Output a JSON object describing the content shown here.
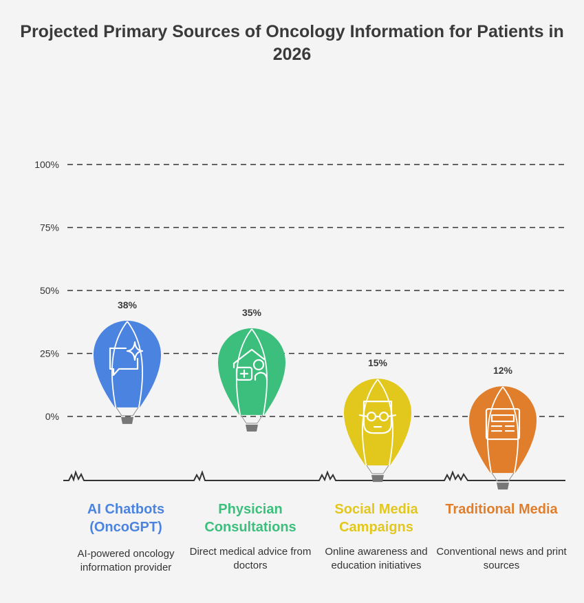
{
  "title": "Projected Primary Sources of Oncology Information for Patients in 2026",
  "chart_data": {
    "type": "bar",
    "style": "hot-air-balloons",
    "categories": [
      "AI Chatbots (OncoGPT)",
      "Physician Consultations",
      "Social Media Campaigns",
      "Traditional Media"
    ],
    "descriptions": [
      "AI-powered oncology information provider",
      "Direct medical advice from doctors",
      "Online awareness and education initiatives",
      "Conventional news and print sources"
    ],
    "values": [
      38,
      35,
      15,
      12
    ],
    "value_labels": [
      "38%",
      "35%",
      "15%",
      "12%"
    ],
    "colors": [
      "#4b84e0",
      "#3cbf7c",
      "#e2c71d",
      "#e07e2b"
    ],
    "icons": [
      "chat-sparkle-icon",
      "medical-house-icon",
      "nerd-face-icon",
      "newspaper-icon"
    ],
    "ylim": [
      0,
      100
    ],
    "yticks": [
      "0%",
      "25%",
      "50%",
      "75%",
      "100%"
    ],
    "grid": "dashed"
  }
}
